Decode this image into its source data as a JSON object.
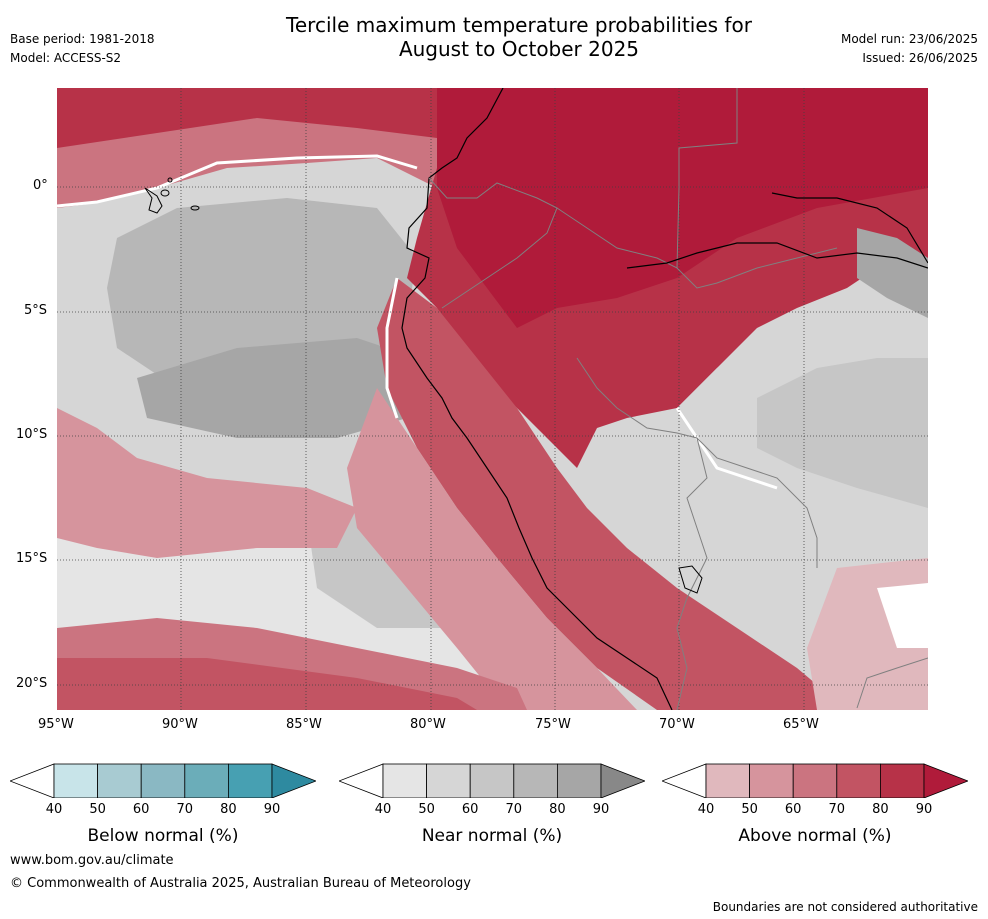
{
  "header": {
    "title_line1": "Tercile maximum temperature probabilities for",
    "title_line2": "August to October 2025",
    "base_period": "Base period: 1981-2018",
    "model": "Model: ACCESS-S2",
    "model_run": "Model run: 23/06/2025",
    "issued": "Issued: 26/06/2025"
  },
  "map": {
    "lat_labels": [
      "0°",
      "5°S",
      "10°S",
      "15°S",
      "20°S"
    ],
    "lon_labels": [
      "95°W",
      "90°W",
      "85°W",
      "80°W",
      "75°W",
      "70°W",
      "65°W"
    ],
    "colors": {
      "land_boundary": "#000000",
      "country_border": "#808080",
      "grid": "#404040"
    }
  },
  "colorbars": [
    {
      "name": "below",
      "title": "Below normal (%)",
      "ticks": [
        "40",
        "50",
        "60",
        "70",
        "80",
        "90"
      ],
      "colors": [
        "#ffffff",
        "#c8e4e9",
        "#a8cbd2",
        "#8ab8c3",
        "#6badb9",
        "#47a0b2",
        "#2e8aa0"
      ]
    },
    {
      "name": "near",
      "title": "Near normal (%)",
      "ticks": [
        "40",
        "50",
        "60",
        "70",
        "80",
        "90"
      ],
      "colors": [
        "#ffffff",
        "#e5e5e5",
        "#d6d6d6",
        "#c6c6c6",
        "#b7b7b7",
        "#a6a6a6",
        "#888888"
      ]
    },
    {
      "name": "above",
      "title": "Above normal (%)",
      "ticks": [
        "40",
        "50",
        "60",
        "70",
        "80",
        "90"
      ],
      "colors": [
        "#ffffff",
        "#e0b8bd",
        "#d6949d",
        "#cb7480",
        "#c25463",
        "#b73248",
        "#b01b3a"
      ]
    }
  ],
  "footer": {
    "website": "www.bom.gov.au/climate",
    "copyright": "© Commonwealth of Australia 2025, Australian Bureau of Meteorology",
    "disclaimer": "Boundaries are not considered authoritative"
  }
}
